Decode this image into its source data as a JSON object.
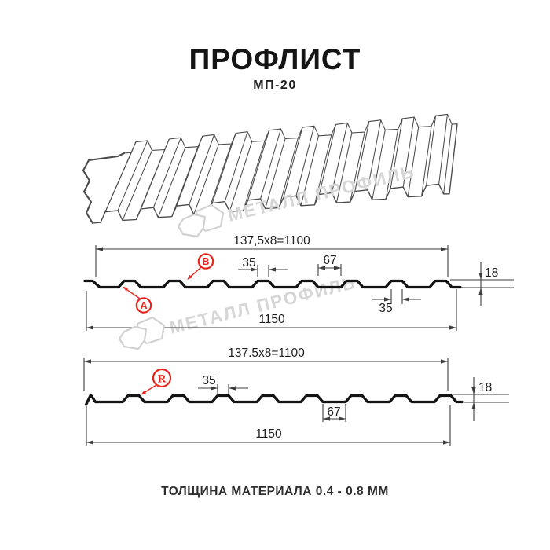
{
  "header": {
    "title": "ПРОФЛИСТ",
    "subtitle": "МП-20"
  },
  "watermark": {
    "brand": "МЕТАЛЛ ПРОФИЛЬ"
  },
  "profile_top": {
    "pitch_dim": "137,5x8=1100",
    "rib_top_width": "35",
    "flat_width": "67",
    "height": "18",
    "rib_bottom_width": "35",
    "overall_width": "1150",
    "label_a": "A",
    "label_b": "B"
  },
  "profile_bottom": {
    "pitch_dim": "137.5x8=1100",
    "rib_top_width": "35",
    "flat_width": "67",
    "height": "18",
    "overall_width": "1150",
    "label_r": "R"
  },
  "footer": {
    "thickness_note": "ТОЛЩИНА МАТЕРИАЛА 0.4 - 0.8 ММ"
  },
  "colors": {
    "accent_red": "#e8231b",
    "line_dark": "#3d3d3d",
    "profile_black": "#141414",
    "watermark_gray": "#d6d6d6"
  }
}
